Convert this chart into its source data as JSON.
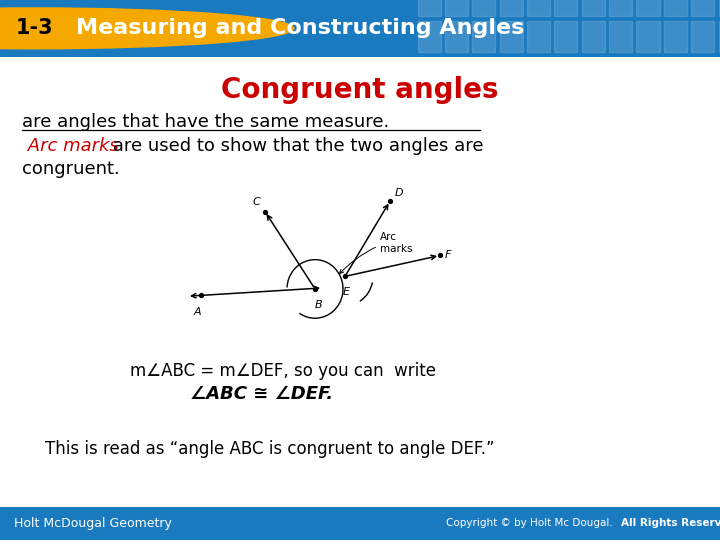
{
  "header_bg_color": "#1a7abf",
  "header_text": "Measuring and Constructing Angles",
  "header_badge_text": "1-3",
  "header_badge_bg": "#f5a800",
  "header_badge_fg": "#000000",
  "header_text_color": "#ffffff",
  "body_bg_color": "#ffffff",
  "title_text": "Congruent angles",
  "title_color": "#cc0000",
  "line1_normal": "are angles that have the same measure.",
  "line2_italic_red": "Arc marks",
  "line2_rest": " are used to show that the two angles are",
  "line3": "congruent.",
  "math_line1": "m∠ABC = m∠DEF, so you can  write",
  "math_line2": "∠ABC ≅ ∠DEF.",
  "read_line": "This is read as “angle ABC is congruent to angle DEF.”",
  "footer_left": "Holt McDougal Geometry",
  "footer_right": "Copyright © by Holt Mc Dougal. All Rights Reserved.",
  "footer_bg": "#1a7abf",
  "footer_text_color": "#ffffff"
}
